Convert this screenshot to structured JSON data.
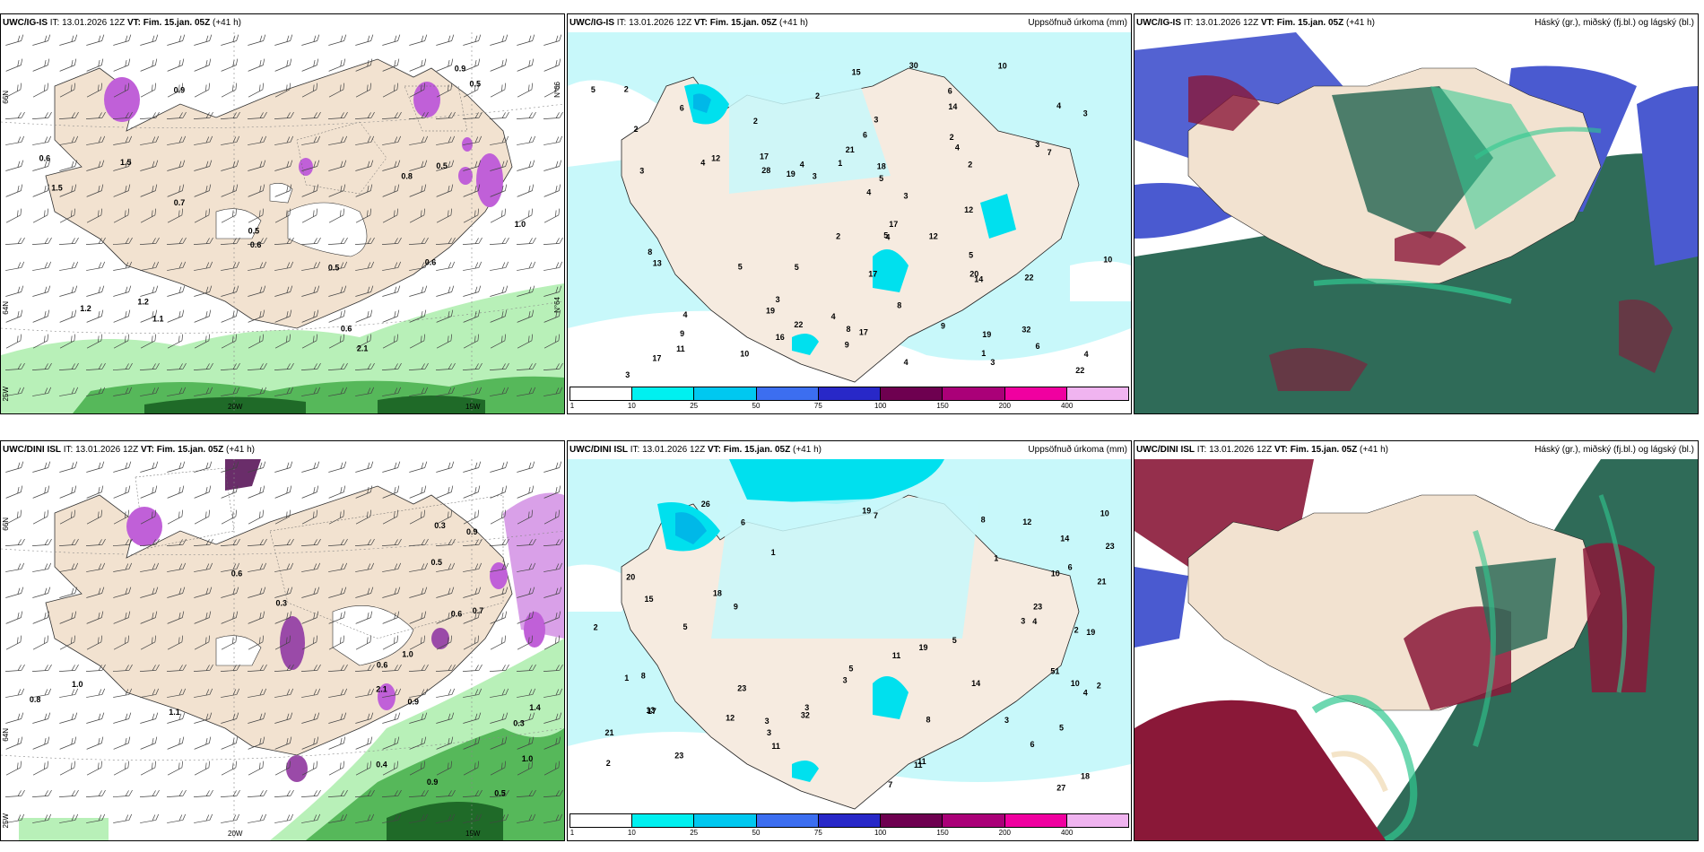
{
  "panels": [
    {
      "id": "top-left",
      "model": "UWC/IG-IS",
      "init": "IT: 13.01.2026 12Z",
      "vt_label": "VT:",
      "valid": "Fim. 15.jan. 05Z",
      "lead": "(+41 h)",
      "right_title": "",
      "lat_labels": [
        "66N",
        "64N",
        "25W"
      ],
      "lat_labels_right": [
        "N°66",
        "N°64"
      ],
      "lon_labels": [
        "20W",
        "15W"
      ],
      "values": [
        "2.1",
        "0.9",
        "1.2",
        "1.5",
        "0.5",
        "0.6",
        "1.0",
        "0.7",
        "0.6",
        "1.1",
        "1.2",
        "0.6",
        "0.5",
        "0.5",
        "0.8",
        "0.9",
        "1.5",
        "0.5",
        "0.6"
      ]
    },
    {
      "id": "top-middle",
      "model": "UWC/IG-IS",
      "init": "IT: 13.01.2026 12Z",
      "vt_label": "VT:",
      "valid": "Fim. 15.jan. 05Z",
      "lead": "(+41 h)",
      "right_title": "Uppsöfnuð úrkoma (mm)",
      "values": [
        "17",
        "22",
        "17",
        "17",
        "2",
        "30",
        "32",
        "6",
        "19",
        "19",
        "22",
        "28",
        "22",
        "15",
        "9",
        "17",
        "20",
        "13",
        "2",
        "3",
        "5",
        "11",
        "9",
        "12",
        "14",
        "14",
        "4",
        "6",
        "7",
        "8",
        "6",
        "5",
        "3",
        "3",
        "5",
        "4",
        "8",
        "2",
        "3",
        "4",
        "4",
        "3",
        "2",
        "16",
        "12",
        "19",
        "21",
        "17",
        "10",
        "4",
        "2",
        "1",
        "2",
        "1",
        "4",
        "6",
        "3",
        "3",
        "3",
        "5",
        "5",
        "2",
        "4",
        "4",
        "3",
        "8",
        "10",
        "9",
        "10",
        "18",
        "12",
        "4",
        "4",
        "5"
      ],
      "colorbar": {
        "ticks": [
          "1",
          "10",
          "25",
          "50",
          "75",
          "100",
          "150",
          "200",
          "400"
        ],
        "colors": [
          "#ffffff",
          "#00f0f0",
          "#00c8f0",
          "#3c6ef0",
          "#2828c8",
          "#6e0050",
          "#aa0078",
          "#f000a0",
          "#f0b4f0"
        ]
      }
    },
    {
      "id": "top-right",
      "model": "UWC/IG-IS",
      "init": "IT: 13.01.2026 12Z",
      "vt_label": "VT:",
      "valid": "Fim. 15.jan. 05Z",
      "lead": "(+41 h)",
      "right_title": "Háský (gr.), miðský (fj.bl.) og lágský (bl.)"
    },
    {
      "id": "bottom-left",
      "model": "UWC/DINI ISL",
      "init": "IT: 13.01.2026 12Z",
      "vt_label": "VT:",
      "valid": "Fim. 15.jan. 05Z",
      "lead": "(+41 h)",
      "right_title": "",
      "lat_labels": [
        "66N",
        "64N",
        "25W"
      ],
      "lon_labels": [
        "20W",
        "15W"
      ],
      "values": [
        "2.1",
        "1.4",
        "0.6",
        "0.3",
        "0.4",
        "0.5",
        "0.7",
        "0.3",
        "1.0",
        "0.9",
        "1.0",
        "0.6",
        "0.8",
        "0.9",
        "1.1",
        "0.5",
        "0.9",
        "1.0",
        "0.3",
        "0.6"
      ]
    },
    {
      "id": "bottom-middle",
      "model": "UWC/DINI ISL",
      "init": "IT: 13.01.2026 12Z",
      "vt_label": "VT:",
      "valid": "Fim. 15.jan. 05Z",
      "lead": "(+41 h)",
      "right_title": "Uppsöfnuð úrkoma (mm)",
      "values": [
        "18",
        "17",
        "20",
        "11",
        "10",
        "19",
        "27",
        "23",
        "23",
        "26",
        "19",
        "21",
        "19",
        "21",
        "51",
        "3",
        "2",
        "1",
        "13",
        "23",
        "14",
        "12",
        "18",
        "14",
        "23",
        "11",
        "10",
        "6",
        "8",
        "5",
        "4",
        "3",
        "5",
        "3",
        "15",
        "11",
        "8",
        "12",
        "32",
        "10",
        "11",
        "5",
        "8",
        "7",
        "9",
        "6",
        "3",
        "2",
        "2",
        "1",
        "1",
        "2",
        "5",
        "6",
        "4",
        "3",
        "7",
        "3"
      ],
      "colorbar": {
        "ticks": [
          "1",
          "10",
          "25",
          "50",
          "75",
          "100",
          "150",
          "200",
          "400"
        ],
        "colors": [
          "#ffffff",
          "#00f0f0",
          "#00c8f0",
          "#3c6ef0",
          "#2828c8",
          "#6e0050",
          "#aa0078",
          "#f000a0",
          "#f0b4f0"
        ]
      }
    },
    {
      "id": "bottom-right",
      "model": "UWC/DINI ISL",
      "init": "IT: 13.01.2026 12Z",
      "vt_label": "VT:",
      "valid": "Fim. 15.jan. 05Z",
      "lead": "(+41 h)",
      "right_title": "Háský (gr.), miðský (fj.bl.) og lágský (bl.)"
    }
  ],
  "colors": {
    "land": "#f2e2d0",
    "precip_light": "#c8f8fa",
    "precip_mid": "#00e0ee",
    "precip_dark": "#00b8e8",
    "green_light": "#b8f0b8",
    "green_mid": "#56b85a",
    "green_dark": "#1f6a28",
    "magenta": "#c060d8",
    "cloud_high": "#2f6b58",
    "cloud_mid": "#4a5ad0",
    "cloud_low": "#8a1838",
    "cloud_green": "#30c890"
  }
}
